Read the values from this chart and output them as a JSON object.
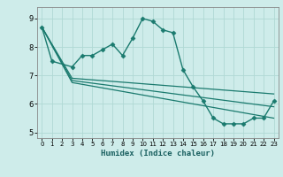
{
  "xlabel": "Humidex (Indice chaleur)",
  "background_color": "#ceecea",
  "grid_color": "#b0d8d4",
  "line_color": "#1a7a6e",
  "xlim": [
    -0.5,
    23.5
  ],
  "ylim": [
    4.8,
    9.4
  ],
  "yticks": [
    5,
    6,
    7,
    8,
    9
  ],
  "xticks": [
    0,
    1,
    2,
    3,
    4,
    5,
    6,
    7,
    8,
    9,
    10,
    11,
    12,
    13,
    14,
    15,
    16,
    17,
    18,
    19,
    20,
    21,
    22,
    23
  ],
  "series": [
    {
      "x": [
        0,
        1,
        3,
        4,
        5,
        6,
        7,
        8,
        9,
        10,
        11,
        12,
        13,
        14,
        15,
        16,
        17,
        18,
        19,
        20,
        21,
        22,
        23
      ],
      "y": [
        8.7,
        7.5,
        7.3,
        7.7,
        7.7,
        7.9,
        8.1,
        7.7,
        8.3,
        9.0,
        8.9,
        8.6,
        8.5,
        7.2,
        6.6,
        6.1,
        5.5,
        5.3,
        5.3,
        5.3,
        5.5,
        5.5,
        6.1
      ],
      "marker": "D",
      "markersize": 2.5,
      "linewidth": 1.0
    },
    {
      "x": [
        0,
        3,
        23
      ],
      "y": [
        8.7,
        6.9,
        6.35
      ],
      "linewidth": 0.9
    },
    {
      "x": [
        0,
        3,
        23
      ],
      "y": [
        8.7,
        6.75,
        5.5
      ],
      "linewidth": 0.9
    },
    {
      "x": [
        0,
        3,
        23
      ],
      "y": [
        8.7,
        6.82,
        5.9
      ],
      "linewidth": 0.9
    }
  ]
}
